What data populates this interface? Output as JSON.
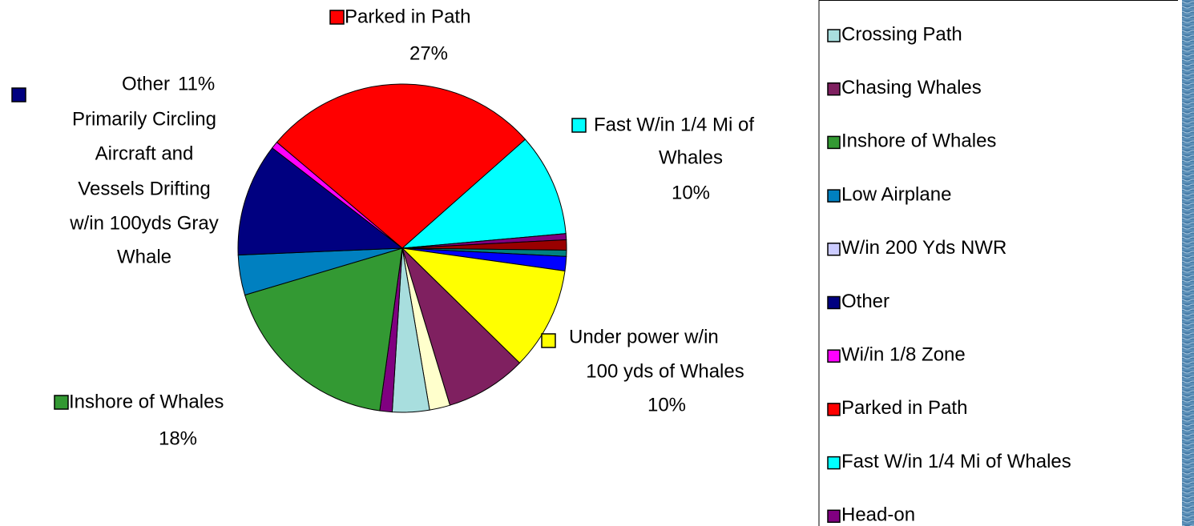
{
  "chart_data": {
    "type": "pie",
    "values": [
      27,
      10,
      0.6,
      1,
      0.6,
      1.4,
      10,
      7.9,
      2,
      3.6,
      1.2,
      18,
      3.9,
      11,
      0.7
    ],
    "colors": [
      "#ff0000",
      "#00ffff",
      "#800080",
      "#990000",
      "#008080",
      "#0000ff",
      "#ffff00",
      "#7f2060",
      "#ffffcc",
      "#a8dede",
      "#800080",
      "#339933",
      "#0080c0",
      "#000080",
      "#ff00ff"
    ],
    "value_labels": [
      "27%",
      "10%",
      null,
      null,
      null,
      null,
      "10%",
      null,
      null,
      null,
      null,
      "18%",
      null,
      "11%",
      null
    ],
    "label_lines": [
      [
        "Parked in Path"
      ],
      [
        "Fast W/in 1/4 Mi of",
        "Whales"
      ],
      null,
      null,
      null,
      null,
      [
        "Under power w/in",
        "100 yds of Whales"
      ],
      null,
      null,
      null,
      null,
      [
        "Inshore of Whales"
      ],
      null,
      [
        "Other",
        "Primarily Circling",
        "Aircraft and",
        "Vessels Drifting",
        "w/in 100yds Gray",
        "Whale"
      ],
      null
    ],
    "legend": [
      {
        "name": "Crossing Path",
        "color": "#a8dede"
      },
      {
        "name": "Chasing Whales",
        "color": "#7f2060"
      },
      {
        "name": "Inshore of Whales",
        "color": "#339933"
      },
      {
        "name": "Low Airplane",
        "color": "#0080c0"
      },
      {
        "name": "W/in 200 Yds NWR",
        "color": "#ccccff"
      },
      {
        "name": "Other",
        "color": "#000080"
      },
      {
        "name": "Wi/in 1/8 Zone",
        "color": "#ff00ff"
      },
      {
        "name": "Parked in Path",
        "color": "#ff0000"
      },
      {
        "name": "Fast W/in 1/4 Mi of Whales",
        "color": "#00ffff"
      },
      {
        "name": "Head-on",
        "color": "#800080"
      }
    ]
  }
}
